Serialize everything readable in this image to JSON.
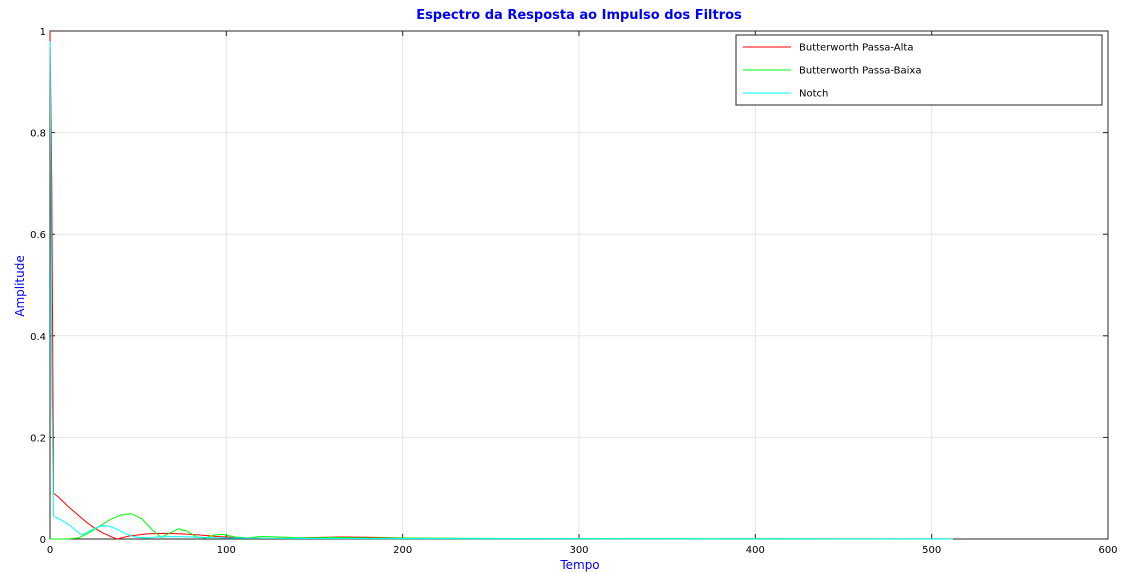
{
  "chart_data": {
    "type": "line",
    "title": "Espectro da Resposta ao Impulso dos Filtros",
    "xlabel": "Tempo",
    "ylabel": "Amplitude",
    "xlim": [
      0,
      600
    ],
    "ylim": [
      0,
      1
    ],
    "xticks": [
      0,
      100,
      200,
      300,
      400,
      500,
      600
    ],
    "yticks": [
      0,
      0.2,
      0.4,
      0.6,
      0.8,
      1
    ],
    "xtick_labels": [
      "0",
      "100",
      "200",
      "300",
      "400",
      "500",
      "600"
    ],
    "ytick_labels": [
      "0",
      "0.2",
      "0.4",
      "0.6",
      "0.8",
      "1"
    ],
    "grid": true,
    "legend_position": "top-right",
    "series": [
      {
        "name": "Butterworth Passa-Alta",
        "color": "#ff0000",
        "x": [
          0,
          1,
          2,
          5,
          10,
          15,
          20,
          25,
          30,
          35,
          38,
          45,
          55,
          65,
          75,
          85,
          95,
          105,
          115,
          125,
          135,
          150,
          165,
          180,
          195,
          210,
          240,
          280,
          320,
          400,
          500,
          512
        ],
        "y": [
          1.0,
          0.7,
          0.09,
          0.082,
          0.065,
          0.05,
          0.035,
          0.022,
          0.012,
          0.004,
          0.0,
          0.006,
          0.01,
          0.011,
          0.01,
          0.008,
          0.005,
          0.003,
          0.0015,
          0.0008,
          0.0015,
          0.003,
          0.004,
          0.0035,
          0.0025,
          0.0015,
          0.0008,
          0.001,
          0.0006,
          0.0004,
          0.0002,
          0.0002
        ]
      },
      {
        "name": "Butterworth Passa-Baixa",
        "color": "#00ff00",
        "x": [
          0,
          1,
          2,
          5,
          10,
          16,
          22,
          28,
          34,
          40,
          46,
          52,
          58,
          63,
          68,
          73,
          78,
          83,
          88,
          93,
          98,
          105,
          112,
          120,
          130,
          145,
          160,
          180,
          200,
          230,
          260,
          300,
          400,
          512
        ],
        "y": [
          0.0,
          0.0,
          0.0,
          0.0,
          0.0,
          0.002,
          0.012,
          0.025,
          0.038,
          0.047,
          0.05,
          0.04,
          0.018,
          0.003,
          0.012,
          0.02,
          0.015,
          0.004,
          0.002,
          0.008,
          0.009,
          0.004,
          0.002,
          0.005,
          0.004,
          0.002,
          0.003,
          0.002,
          0.002,
          0.0015,
          0.001,
          0.0008,
          0.0004,
          0.0002
        ]
      },
      {
        "name": "Notch",
        "color": "#00ffff",
        "x": [
          0,
          0.5,
          1,
          2,
          5,
          10,
          15,
          18,
          22,
          26,
          30,
          34,
          38,
          42,
          46,
          50,
          55,
          60,
          70,
          80,
          90,
          100,
          120,
          150,
          200,
          300,
          400,
          512
        ],
        "y": [
          0.98,
          0.7,
          0.3,
          0.045,
          0.04,
          0.03,
          0.016,
          0.008,
          0.015,
          0.022,
          0.026,
          0.025,
          0.019,
          0.012,
          0.006,
          0.003,
          0.002,
          0.004,
          0.005,
          0.004,
          0.003,
          0.002,
          0.0015,
          0.001,
          0.0008,
          0.0004,
          0.0002,
          0.0001
        ]
      }
    ]
  }
}
